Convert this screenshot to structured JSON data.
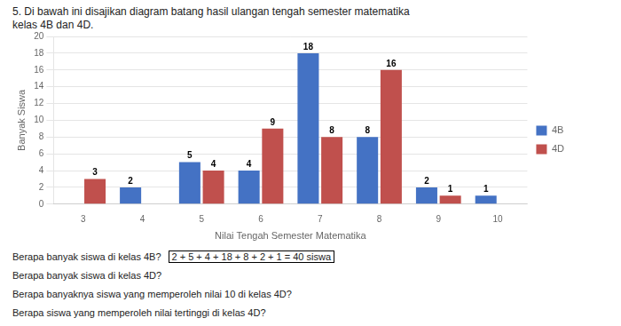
{
  "chart_data": {
    "type": "bar",
    "title": [
      "5. Di bawah ini disajikan diagram batang hasil ulangan tengah semester matematika",
      "kelas 4B dan 4D."
    ],
    "categories": [
      "3",
      "4",
      "5",
      "6",
      "7",
      "8",
      "9",
      "10"
    ],
    "series": [
      {
        "name": "4B",
        "color": "#4472C4",
        "values": [
          0,
          2,
          5,
          4,
          18,
          8,
          2,
          1
        ],
        "value_labels": [
          null,
          "2",
          "5",
          "4",
          "18",
          "8",
          "2",
          "1"
        ]
      },
      {
        "name": "4D",
        "color": "#C0504D",
        "values": [
          3,
          0,
          4,
          9,
          8,
          16,
          1,
          0
        ],
        "value_labels": [
          "3",
          null,
          "4",
          "9",
          "8",
          "16",
          "1",
          null
        ]
      }
    ],
    "xlabel": "Nilai Tengah Semester Matematika",
    "ylabel": "Banyak Siswa",
    "ylim": [
      0,
      20
    ],
    "yticks": [
      0,
      2,
      4,
      6,
      8,
      10,
      12,
      14,
      16,
      18,
      20
    ],
    "grid": true,
    "legend": "right",
    "data_labels": true,
    "annotations": [
      "Berapa banyak siswa di kelas 4B?",
      "2 + 5 + 4 + 18 + 8 + 2 + 1 = 40 siswa",
      "Berapa banyak siswa di kelas 4D?",
      "Berapa banyaknya siswa yang memperoleh nilai 10 di kelas 4D?",
      "Berapa siswa yang memperoleh nilai tertinggi di kelas 4D?"
    ]
  }
}
